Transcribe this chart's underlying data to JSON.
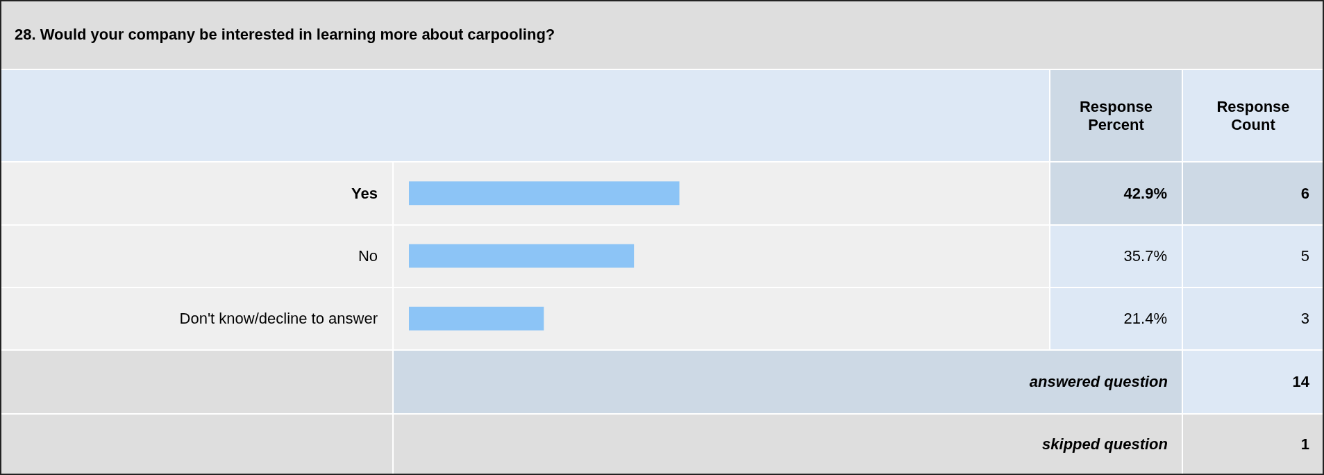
{
  "chart_data": {
    "type": "bar",
    "orientation": "horizontal",
    "title": "28. Would your company be interested in learning more about carpooling?",
    "categories": [
      "Yes",
      "No",
      "Don't know/decline to answer"
    ],
    "values": [
      42.9,
      35.7,
      21.4
    ],
    "value_labels": [
      "42.9%",
      "35.7%",
      "21.4%"
    ],
    "color": "#8cc4f6",
    "tick_labels": "y",
    "annotations": [
      "Response Percent",
      "Response Count",
      "6",
      "5",
      "3",
      "answered question",
      "14",
      "skipped question",
      "1"
    ]
  }
}
